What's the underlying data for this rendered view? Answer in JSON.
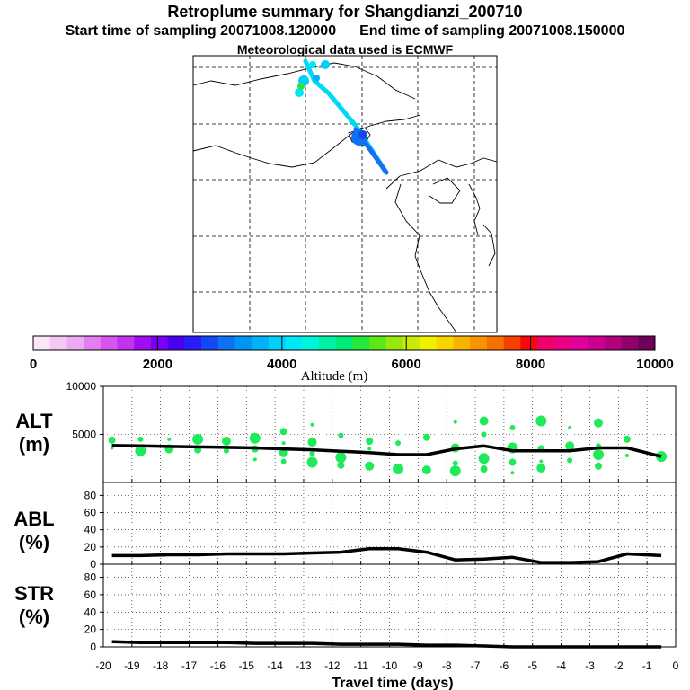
{
  "header": {
    "title": "Retroplume summary for Shangdianzi_200710",
    "start_time": "Start time of sampling 20071008.120000",
    "end_time": "End time of sampling 20071008.150000",
    "met_data": "Meteorological data used is ECMWF"
  },
  "colorbar": {
    "label": "Altitude (m)",
    "tick_labels": [
      "0",
      "2000",
      "4000",
      "6000",
      "8000",
      "10000"
    ],
    "range": [
      0,
      10000
    ],
    "colors": [
      "#fbe6fb",
      "#f4c8f4",
      "#eeaaf0",
      "#e47ff0",
      "#d655ee",
      "#c233ee",
      "#a20cf0",
      "#7a00f2",
      "#4a00f0",
      "#2a1cf6",
      "#1448f4",
      "#0e70f4",
      "#0094f4",
      "#00b2f8",
      "#00d0fa",
      "#00e8f8",
      "#00f4d8",
      "#00f0a8",
      "#00ec78",
      "#24e83e",
      "#5ae81a",
      "#96e80e",
      "#c8ec0a",
      "#f0f000",
      "#f8d400",
      "#f8b400",
      "#f89400",
      "#f87000",
      "#f84000",
      "#f40a0a",
      "#f0006a",
      "#ea0084",
      "#e2009a",
      "#cc0090",
      "#b0007e",
      "#90006c",
      "#6e0058"
    ]
  },
  "panels": {
    "alt": {
      "label_line1": "ALT",
      "label_line2": "(m)"
    },
    "abl": {
      "label_line1": "ABL",
      "label_line2": "(%)"
    },
    "str": {
      "label_line1": "STR",
      "label_line2": "(%)"
    }
  },
  "chart_data": [
    {
      "type": "line",
      "name": "ALT",
      "ylabel": "ALT (m)",
      "xlim": [
        -20,
        0
      ],
      "ylim": [
        0,
        10000
      ],
      "yticks": [
        5000,
        10000
      ],
      "x": [
        -19.7,
        -18.7,
        -17.7,
        -16.7,
        -15.7,
        -14.7,
        -13.7,
        -12.7,
        -11.7,
        -10.7,
        -9.7,
        -8.7,
        -7.7,
        -6.7,
        -5.7,
        -4.7,
        -3.7,
        -2.7,
        -1.7,
        -0.5
      ],
      "mean_altitude": [
        3850,
        3800,
        3750,
        3700,
        3650,
        3600,
        3500,
        3400,
        3250,
        3100,
        2900,
        2900,
        3500,
        3800,
        3300,
        3300,
        3300,
        3600,
        3600,
        2700
      ],
      "plume_points": [
        [
          -19.7,
          3600
        ],
        [
          -19.7,
          4400
        ],
        [
          -18.7,
          3300
        ],
        [
          -18.7,
          4500
        ],
        [
          -17.7,
          3500
        ],
        [
          -17.7,
          4500
        ],
        [
          -16.7,
          3400
        ],
        [
          -16.7,
          4500
        ],
        [
          -15.7,
          3300
        ],
        [
          -15.7,
          4300
        ],
        [
          -14.7,
          2400
        ],
        [
          -14.7,
          3500
        ],
        [
          -14.7,
          4600
        ],
        [
          -13.7,
          2200
        ],
        [
          -13.7,
          3100
        ],
        [
          -13.7,
          4100
        ],
        [
          -13.7,
          5300
        ],
        [
          -12.7,
          2100
        ],
        [
          -12.7,
          3000
        ],
        [
          -12.7,
          4200
        ],
        [
          -12.7,
          6000
        ],
        [
          -11.7,
          1800
        ],
        [
          -11.7,
          2600
        ],
        [
          -11.7,
          4900
        ],
        [
          -10.7,
          1700
        ],
        [
          -10.7,
          3500
        ],
        [
          -10.7,
          4300
        ],
        [
          -9.7,
          1400
        ],
        [
          -9.7,
          4100
        ],
        [
          -8.7,
          1300
        ],
        [
          -8.7,
          2900
        ],
        [
          -8.7,
          4700
        ],
        [
          -7.7,
          1200
        ],
        [
          -7.7,
          2000
        ],
        [
          -7.7,
          3600
        ],
        [
          -7.7,
          6300
        ],
        [
          -6.7,
          1400
        ],
        [
          -6.7,
          2500
        ],
        [
          -6.7,
          5000
        ],
        [
          -6.7,
          6400
        ],
        [
          -5.7,
          1000
        ],
        [
          -5.7,
          2100
        ],
        [
          -5.7,
          3600
        ],
        [
          -5.7,
          5700
        ],
        [
          -4.7,
          1500
        ],
        [
          -4.7,
          2200
        ],
        [
          -4.7,
          3500
        ],
        [
          -4.7,
          6400
        ],
        [
          -3.7,
          2300
        ],
        [
          -3.7,
          3800
        ],
        [
          -3.7,
          5700
        ],
        [
          -2.7,
          1700
        ],
        [
          -2.7,
          2900
        ],
        [
          -2.7,
          3800
        ],
        [
          -2.7,
          6200
        ],
        [
          -1.7,
          2800
        ],
        [
          -1.7,
          4500
        ],
        [
          -0.5,
          2700
        ]
      ]
    },
    {
      "type": "line",
      "name": "ABL",
      "ylabel": "ABL (%)",
      "xlim": [
        -20,
        0
      ],
      "ylim": [
        0,
        95
      ],
      "yticks": [
        0,
        20,
        40,
        60,
        80
      ],
      "x": [
        -19.7,
        -18.7,
        -17.7,
        -16.7,
        -15.7,
        -14.7,
        -13.7,
        -12.7,
        -11.7,
        -10.7,
        -9.7,
        -8.7,
        -7.7,
        -6.7,
        -5.7,
        -4.7,
        -3.7,
        -2.7,
        -1.7,
        -0.5
      ],
      "values": [
        10,
        10,
        11,
        11,
        12,
        12,
        12,
        13,
        14,
        18,
        18,
        14,
        5,
        6,
        8,
        2,
        2,
        3,
        12,
        10
      ]
    },
    {
      "type": "line",
      "name": "STR",
      "ylabel": "STR (%)",
      "xlim": [
        -20,
        0
      ],
      "ylim": [
        0,
        95
      ],
      "yticks": [
        0,
        20,
        40,
        60,
        80
      ],
      "xlabel": "Travel time (days)",
      "xticks": [
        -20,
        -19,
        -18,
        -17,
        -16,
        -15,
        -14,
        -13,
        -12,
        -11,
        -10,
        -9,
        -8,
        -7,
        -6,
        -5,
        -4,
        -3,
        -2,
        -1,
        0
      ],
      "x": [
        -19.7,
        -18.7,
        -17.7,
        -16.7,
        -15.7,
        -14.7,
        -13.7,
        -12.7,
        -11.7,
        -10.7,
        -9.7,
        -8.7,
        -7.7,
        -6.7,
        -5.7,
        -4.7,
        -3.7,
        -2.7,
        -1.7,
        -0.5
      ],
      "values": [
        6,
        5,
        5,
        5,
        5,
        4,
        4,
        4,
        3,
        3,
        3,
        2,
        2,
        1,
        0,
        0,
        0,
        0,
        0,
        0
      ]
    }
  ]
}
